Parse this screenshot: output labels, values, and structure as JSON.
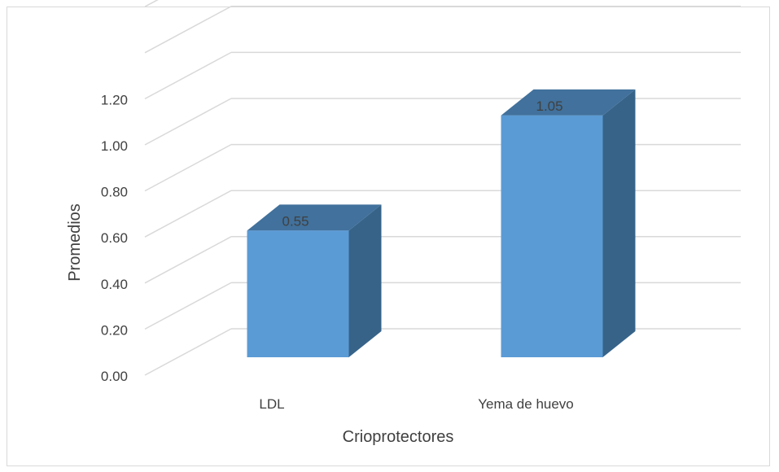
{
  "chart_data": {
    "type": "bar",
    "title": "",
    "xlabel": "Crioprotectores",
    "ylabel": "Promedios",
    "categories": [
      "LDL",
      "Yema de huevo"
    ],
    "series": [
      {
        "values": [
          0.55,
          1.05
        ],
        "data_labels": [
          "0.55",
          "1.05"
        ]
      }
    ],
    "ylim": [
      0,
      1.6
    ],
    "ytick_labels": [
      "0.00",
      "0.20",
      "0.40",
      "0.60",
      "0.80",
      "1.00",
      "1.20"
    ],
    "grid": true,
    "style": "3d-column",
    "colors": {
      "bar_front": "#5b9bd5",
      "bar_top": "#41719c",
      "bar_side": "#376389",
      "grid": "#d9d9d9",
      "text": "#404040"
    }
  }
}
